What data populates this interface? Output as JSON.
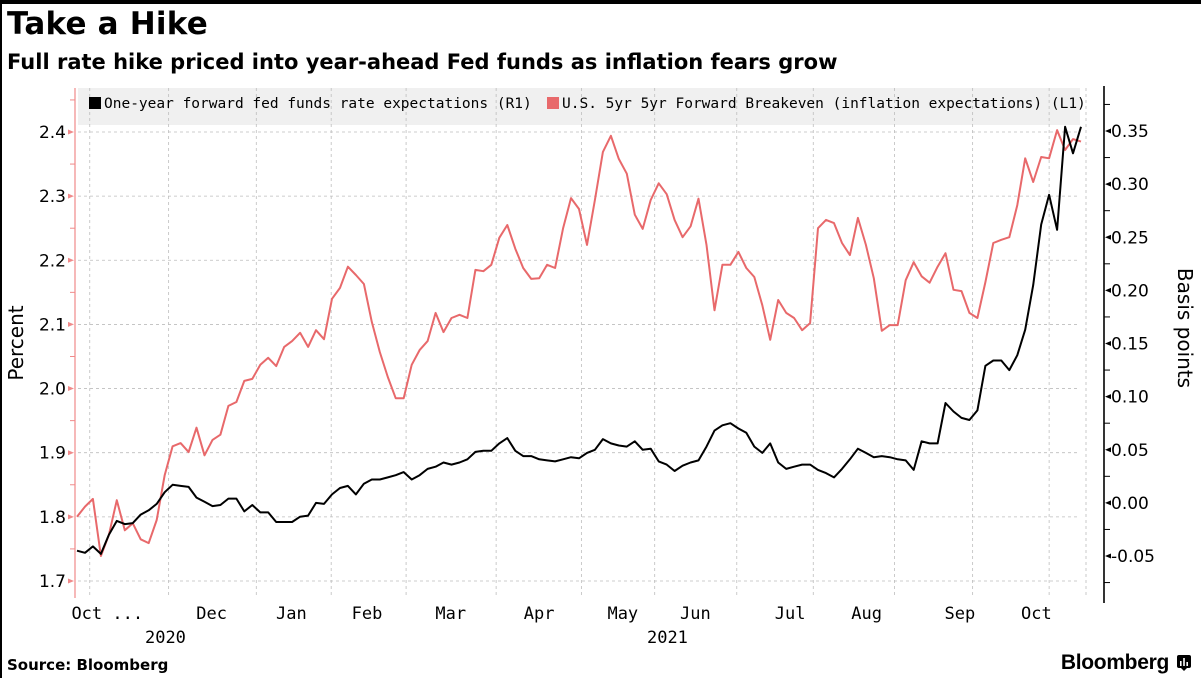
{
  "header": {
    "title": "Take a Hike",
    "subtitle": "Full rate hike priced into year-ahead Fed funds as inflation fears grow"
  },
  "footer": {
    "source": "Source: Bloomberg",
    "brand": "Bloomberg",
    "brand_icon": "bloomberg-chart-icon"
  },
  "colors": {
    "black_series": "#000000",
    "red_series": "#e8696b",
    "left_axis": "#f08a8a",
    "legend_bg": "#f0f0f0",
    "grid": "#bdbdbd"
  },
  "chart_data": {
    "type": "line",
    "title": "Take a Hike",
    "subtitle": "Full rate hike priced into year-ahead Fed funds as inflation fears grow",
    "x_start": "2020-10-20",
    "x_end": "2021-10-21",
    "x_count": 127,
    "ylabel_left": "Percent",
    "ylabel_right": "Basis points",
    "ylim_left": [
      1.68,
      2.48
    ],
    "ylim_right": [
      -0.085,
      0.39
    ],
    "yticks_left": [
      1.7,
      1.8,
      1.9,
      2.0,
      2.1,
      2.2,
      2.3,
      2.4
    ],
    "yticks_left_labels": [
      "1.7",
      "1.8",
      "1.9",
      "2.0",
      "2.1",
      "2.2",
      "2.3",
      "2.4"
    ],
    "yticks_right": [
      -0.05,
      0.0,
      0.05,
      0.1,
      0.15,
      0.2,
      0.25,
      0.3,
      0.35
    ],
    "yticks_right_labels": [
      "-0.05",
      "0.00",
      "0.05",
      "0.10",
      "0.15",
      "0.20",
      "0.25",
      "0.30",
      "0.35"
    ],
    "grid": true,
    "legend_position": "top",
    "month_boundaries": [
      1.6,
      11.5,
      22.5,
      31.9,
      41.3,
      52.6,
      63.3,
      72.5,
      82.8,
      92.4,
      102.6,
      112.4,
      122
    ],
    "xtick_labels": [
      {
        "label": "Oct ...",
        "at": 3.8
      },
      {
        "label": "Dec",
        "at": 16.9
      },
      {
        "label": "Jan",
        "at": 26.9
      },
      {
        "label": "Feb",
        "at": 36.4
      },
      {
        "label": "Mar",
        "at": 46.9
      },
      {
        "label": "Apr",
        "at": 58.0
      },
      {
        "label": "May",
        "at": 68.5
      },
      {
        "label": "Jun",
        "at": 77.6
      },
      {
        "label": "Jul",
        "at": 89.5
      },
      {
        "label": "Aug",
        "at": 99.1
      },
      {
        "label": "Sep",
        "at": 110.8
      },
      {
        "label": "Oct",
        "at": 120.4
      }
    ],
    "year_labels": [
      {
        "label": "2020",
        "at": 11.1
      },
      {
        "label": "2021",
        "at": 74.1
      }
    ],
    "series": [
      {
        "name": "One-year forward fed funds rate expectations (R1)",
        "axis": "right",
        "color": "#000000",
        "values": [
          -0.045,
          -0.047,
          -0.041,
          -0.048,
          -0.03,
          -0.017,
          -0.02,
          -0.019,
          -0.011,
          -0.007,
          -0.001,
          0.01,
          0.017,
          0.016,
          0.015,
          0.005,
          0.001,
          -0.003,
          -0.002,
          0.004,
          0.004,
          -0.008,
          -0.002,
          -0.009,
          -0.009,
          -0.018,
          -0.018,
          -0.018,
          -0.013,
          -0.012,
          0.0,
          -0.001,
          0.008,
          0.014,
          0.016,
          0.008,
          0.018,
          0.022,
          0.022,
          0.024,
          0.026,
          0.029,
          0.022,
          0.026,
          0.032,
          0.034,
          0.038,
          0.036,
          0.038,
          0.041,
          0.048,
          0.049,
          0.049,
          0.056,
          0.061,
          0.049,
          0.044,
          0.044,
          0.041,
          0.04,
          0.039,
          0.041,
          0.043,
          0.042,
          0.047,
          0.05,
          0.06,
          0.056,
          0.054,
          0.053,
          0.058,
          0.05,
          0.051,
          0.039,
          0.036,
          0.03,
          0.035,
          0.038,
          0.04,
          0.053,
          0.068,
          0.073,
          0.075,
          0.07,
          0.066,
          0.053,
          0.047,
          0.056,
          0.038,
          0.032,
          0.034,
          0.036,
          0.036,
          0.031,
          0.028,
          0.024,
          0.032,
          0.041,
          0.051,
          0.047,
          0.043,
          0.044,
          0.043,
          0.041,
          0.04,
          0.031,
          0.058,
          0.056,
          0.056,
          0.094,
          0.086,
          0.08,
          0.078,
          0.087,
          0.129,
          0.134,
          0.134,
          0.125,
          0.139,
          0.163,
          0.205,
          0.262,
          0.29,
          0.257,
          0.354,
          0.329,
          0.354
        ]
      },
      {
        "name": "U.S. 5yr 5yr Forward Breakeven (inflation expectations) (L1)",
        "axis": "left",
        "color": "#e8696b",
        "values": [
          1.8,
          1.816,
          1.828,
          1.739,
          1.772,
          1.826,
          1.779,
          1.79,
          1.765,
          1.759,
          1.795,
          1.865,
          1.91,
          1.915,
          1.901,
          1.939,
          1.896,
          1.92,
          1.928,
          1.973,
          1.979,
          2.012,
          2.015,
          2.037,
          2.048,
          2.035,
          2.065,
          2.074,
          2.087,
          2.065,
          2.091,
          2.077,
          2.14,
          2.157,
          2.19,
          2.177,
          2.163,
          2.104,
          2.057,
          2.018,
          1.985,
          1.985,
          2.037,
          2.06,
          2.074,
          2.118,
          2.088,
          2.11,
          2.115,
          2.11,
          2.185,
          2.183,
          2.193,
          2.235,
          2.255,
          2.218,
          2.188,
          2.171,
          2.172,
          2.193,
          2.188,
          2.25,
          2.297,
          2.28,
          2.224,
          2.294,
          2.369,
          2.394,
          2.358,
          2.335,
          2.271,
          2.249,
          2.294,
          2.32,
          2.303,
          2.263,
          2.236,
          2.253,
          2.296,
          2.224,
          2.122,
          2.193,
          2.193,
          2.213,
          2.188,
          2.174,
          2.13,
          2.076,
          2.138,
          2.118,
          2.11,
          2.091,
          2.102,
          2.25,
          2.263,
          2.258,
          2.227,
          2.208,
          2.266,
          2.224,
          2.172,
          2.09,
          2.099,
          2.099,
          2.169,
          2.197,
          2.175,
          2.165,
          2.19,
          2.211,
          2.154,
          2.152,
          2.118,
          2.11,
          2.166,
          2.227,
          2.232,
          2.236,
          2.286,
          2.359,
          2.322,
          2.361,
          2.359,
          2.403,
          2.372,
          2.389,
          2.385
        ]
      }
    ]
  }
}
